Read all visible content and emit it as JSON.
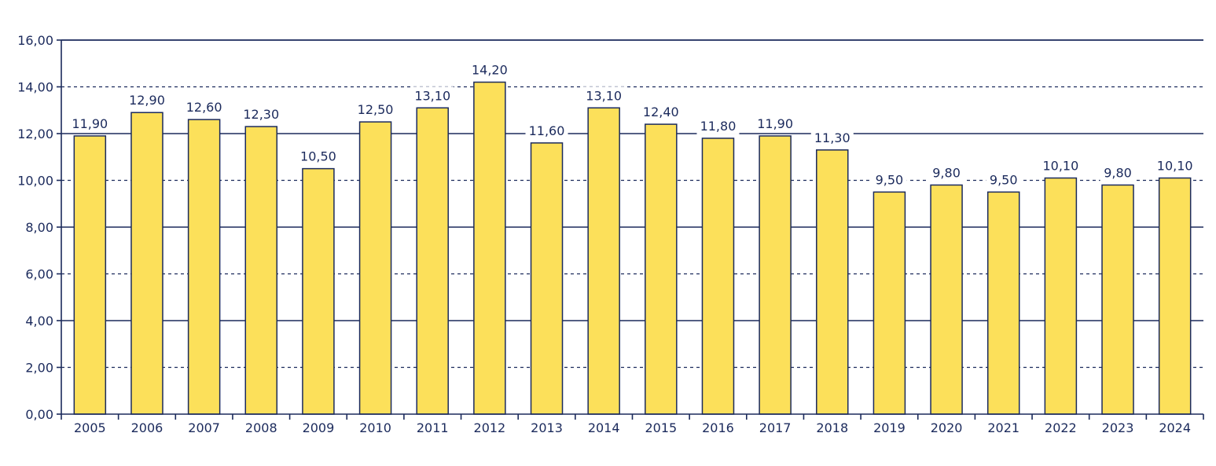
{
  "chart_data": {
    "type": "bar",
    "categories": [
      "2005",
      "2006",
      "2007",
      "2008",
      "2009",
      "2010",
      "2011",
      "2012",
      "2013",
      "2014",
      "2015",
      "2016",
      "2017",
      "2018",
      "2019",
      "2020",
      "2021",
      "2022",
      "2023",
      "2024"
    ],
    "values": [
      11.9,
      12.9,
      12.6,
      12.3,
      10.5,
      12.5,
      13.1,
      14.2,
      11.6,
      13.1,
      12.4,
      11.8,
      11.9,
      11.3,
      9.5,
      9.8,
      9.5,
      10.1,
      9.8,
      10.1
    ],
    "data_labels": [
      "11,90",
      "12,90",
      "12,60",
      "12,30",
      "10,50",
      "12,50",
      "13,10",
      "14,20",
      "11,60",
      "13,10",
      "12,40",
      "11,80",
      "11,90",
      "11,30",
      "9,50",
      "9,80",
      "9,50",
      "10,10",
      "9,80",
      "10,10"
    ],
    "y_ticks": [
      0,
      2,
      4,
      6,
      8,
      10,
      12,
      14,
      16
    ],
    "y_tick_labels": [
      "0,00",
      "2,00",
      "4,00",
      "6,00",
      "8,00",
      "10,00",
      "12,00",
      "14,00",
      "16,00"
    ],
    "ylim": [
      0,
      16
    ],
    "title": "",
    "xlabel": "",
    "ylabel": "",
    "grid": "solid at 0,4,8,12,16; dashed at 2,6,10,14",
    "legend": "none",
    "colors": {
      "bar": "#fce05a",
      "outline": "#1b2a5c",
      "grid": "#1b2a5c",
      "text": "#1b2a5c"
    }
  }
}
